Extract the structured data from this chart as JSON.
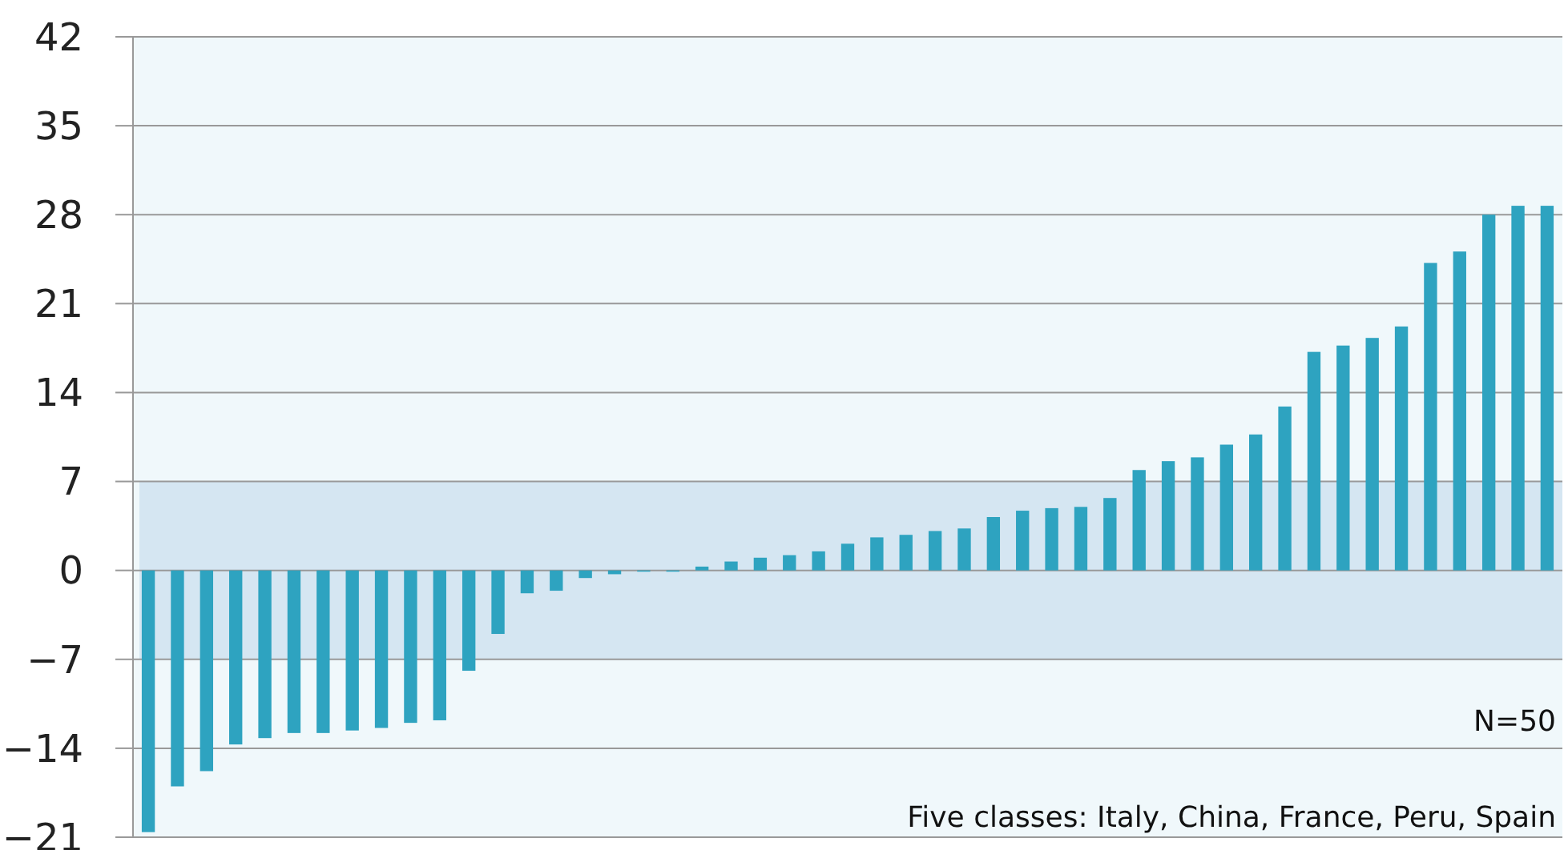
{
  "chart_data": {
    "type": "bar",
    "categories": [
      null,
      null,
      null,
      null,
      null,
      null,
      null,
      null,
      null,
      null,
      null,
      null,
      null,
      null,
      null,
      null,
      null,
      null,
      null,
      null,
      null,
      null,
      null,
      null,
      null,
      null,
      null,
      null,
      null,
      null,
      null,
      null,
      null,
      null,
      null,
      null,
      null,
      null,
      null,
      null,
      null,
      null,
      null,
      null,
      null,
      null,
      null,
      null,
      null
    ],
    "values": [
      -20.6,
      -17.0,
      -15.8,
      -13.7,
      -13.2,
      -12.8,
      -12.8,
      -12.6,
      -12.4,
      -12.0,
      -11.8,
      -7.9,
      -5.0,
      -1.8,
      -1.6,
      -0.6,
      -0.3,
      -0.1,
      -0.1,
      0.3,
      0.7,
      1.0,
      1.2,
      1.5,
      2.1,
      2.6,
      2.8,
      3.1,
      3.3,
      4.2,
      4.7,
      4.9,
      5.0,
      5.7,
      7.9,
      8.6,
      8.9,
      9.9,
      10.7,
      12.9,
      17.2,
      17.7,
      18.3,
      19.2,
      24.2,
      25.1,
      28.0,
      28.7,
      28.7
    ],
    "color": "#2ea3c0",
    "ylim": [
      -21,
      42
    ],
    "yticks": [
      -21,
      -14,
      -7,
      0,
      7,
      14,
      21,
      28,
      35,
      42
    ],
    "grid": "y",
    "bands": [
      {
        "axis": "y",
        "from": -7,
        "to": 7,
        "color": "#d5e6f2"
      }
    ],
    "annotations": [
      "N=50",
      "Five classes: Italy, China, France, Peru, Spain"
    ]
  }
}
